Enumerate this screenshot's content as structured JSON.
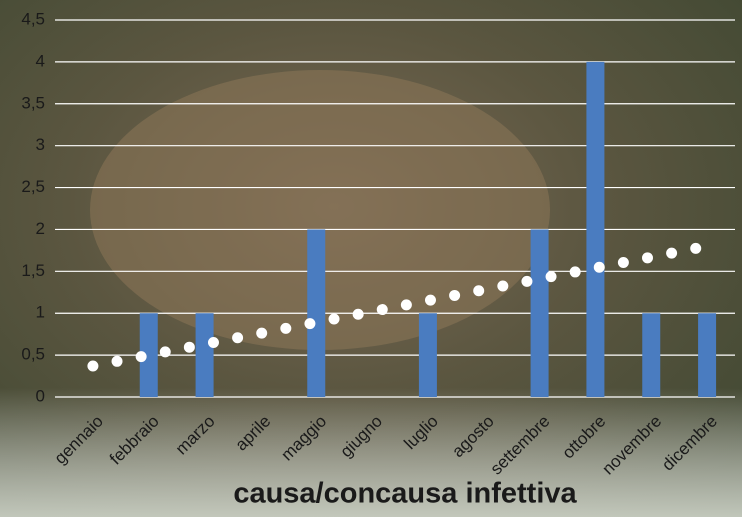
{
  "chart_data": {
    "type": "bar",
    "title": "causa/concausa infettiva",
    "categories": [
      "gennaio",
      "febbraio",
      "marzo",
      "aprile",
      "maggio",
      "giugno",
      "luglio",
      "agosto",
      "settembre",
      "ottobre",
      "novembre",
      "dicembre"
    ],
    "values": [
      0,
      1,
      1,
      0,
      2,
      0,
      1,
      0,
      2,
      4,
      1,
      1
    ],
    "color": "#4a7cc0",
    "trend": [
      0.37,
      1.8
    ],
    "trend_color": "#ffffff",
    "ylim": [
      0,
      4.5
    ],
    "yticks": [
      0,
      {
        "value": 0.5,
        "label": "0,5"
      },
      1,
      {
        "value": 1.5,
        "label": "1,5"
      },
      2,
      {
        "value": 2.5,
        "label": "2,5"
      },
      3,
      {
        "value": 3.5,
        "label": "3,5"
      },
      4,
      {
        "value": 4.5,
        "label": "4,5"
      }
    ],
    "grid": true
  }
}
